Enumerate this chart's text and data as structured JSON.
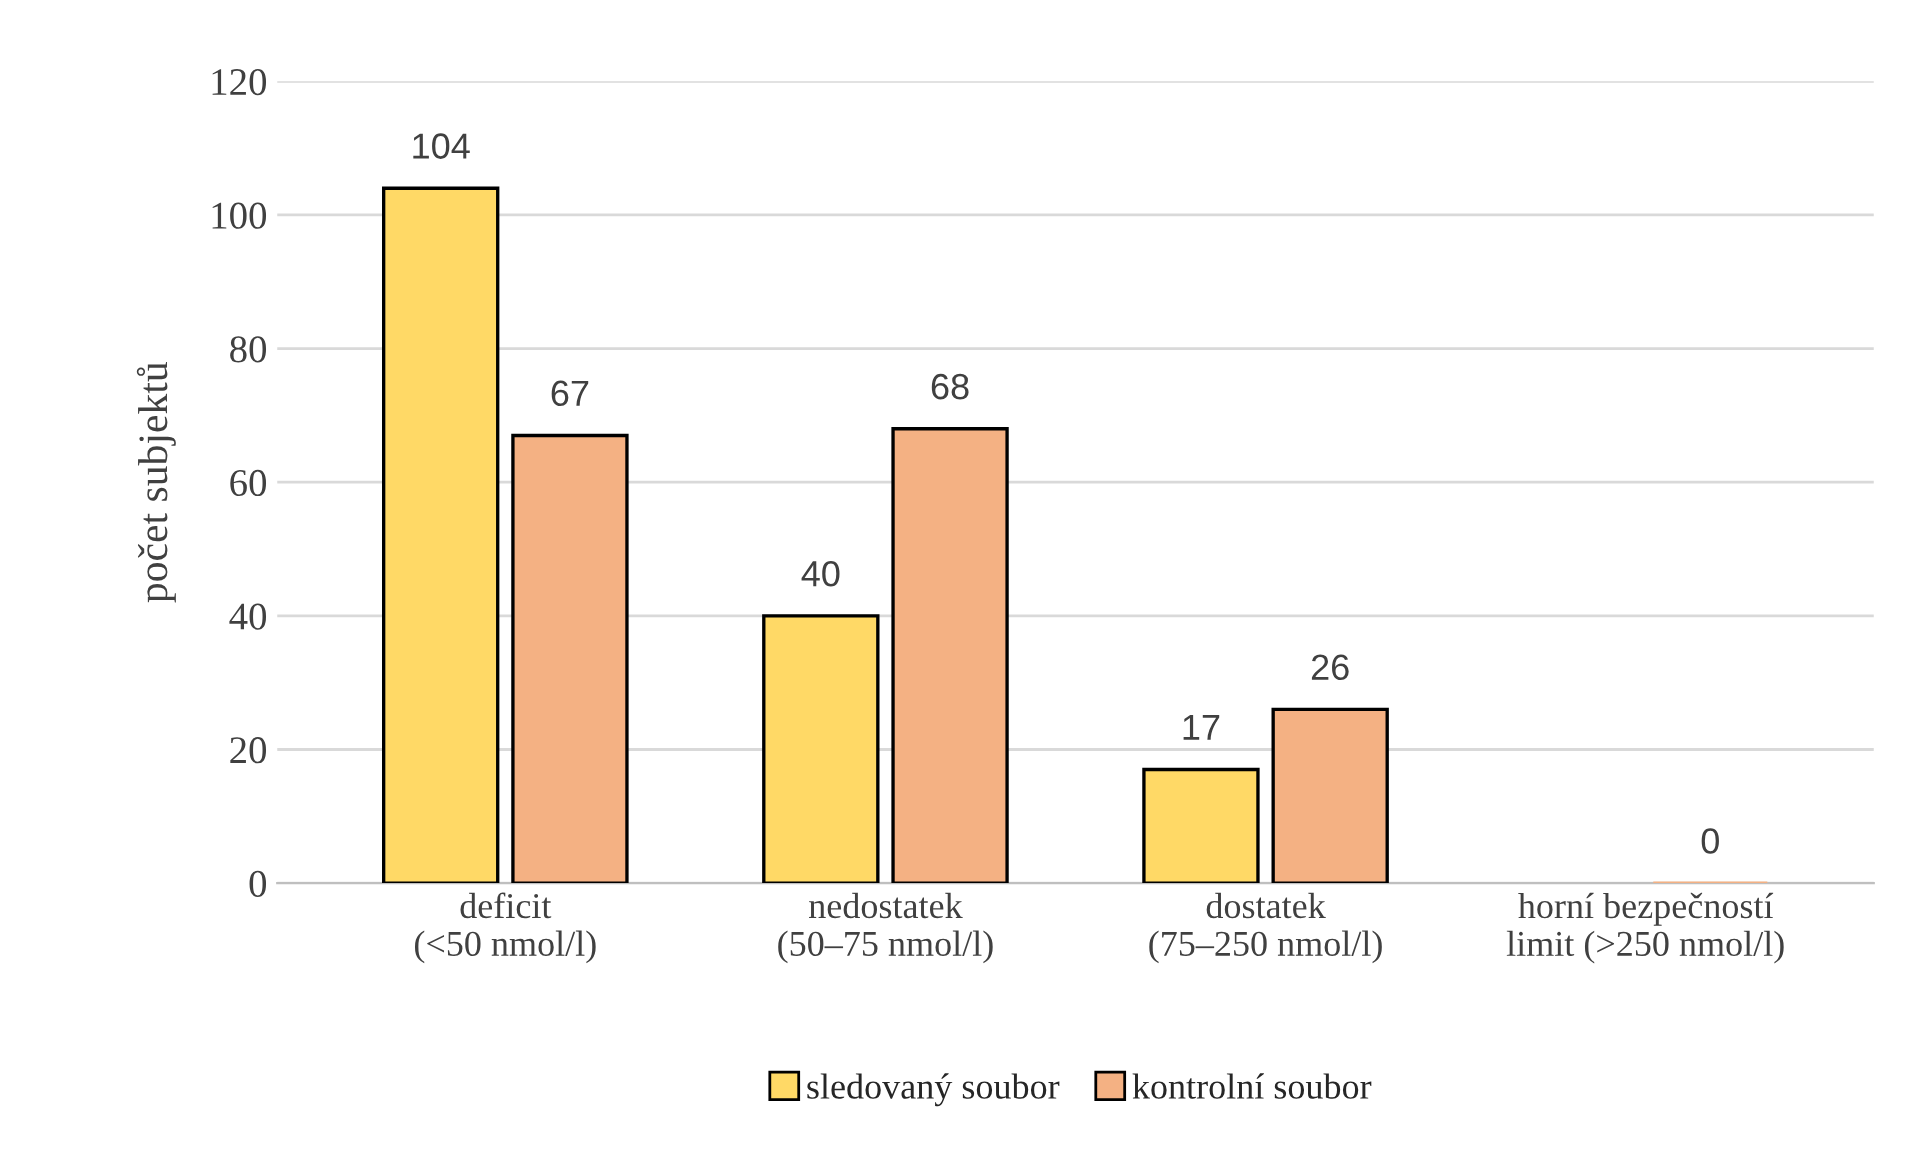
{
  "chart_data": {
    "type": "bar",
    "ylabel": "počet subjektů",
    "categories": [
      "deficit\n(<50 nmol/l)",
      "nedostatek\n(50–75 nmol/l)",
      "dostatek\n(75–250 nmol/l)",
      "horní bezpečností\nlimit (>250 nmol/l)"
    ],
    "series": [
      {
        "name": "sledovaný soubor",
        "color": "#ffd966",
        "values": [
          104,
          40,
          17,
          null
        ]
      },
      {
        "name": "kontrolní soubor",
        "color": "#f4b183",
        "values": [
          67,
          68,
          26,
          0
        ]
      }
    ],
    "ylim": [
      0,
      120
    ],
    "yticks": [
      0,
      20,
      40,
      60,
      80,
      100,
      120
    ],
    "grid": "y",
    "legend": "bottom",
    "data_labels": true
  }
}
